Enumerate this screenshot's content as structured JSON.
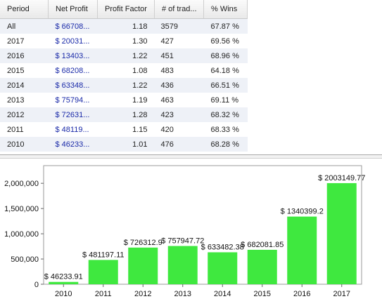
{
  "table": {
    "columns": [
      "Period",
      "Net Profit",
      "Profit Factor",
      "# of trad...",
      "% Wins"
    ],
    "rows": [
      {
        "period": "All",
        "net_profit": "$ 66708...",
        "profit_factor": "1.18",
        "trades": "3579",
        "wins": "67.87 %"
      },
      {
        "period": "2017",
        "net_profit": "$ 20031...",
        "profit_factor": "1.30",
        "trades": "427",
        "wins": "69.56 %"
      },
      {
        "period": "2016",
        "net_profit": "$ 13403...",
        "profit_factor": "1.22",
        "trades": "451",
        "wins": "68.96 %"
      },
      {
        "period": "2015",
        "net_profit": "$ 68208...",
        "profit_factor": "1.08",
        "trades": "483",
        "wins": "64.18 %"
      },
      {
        "period": "2014",
        "net_profit": "$ 63348...",
        "profit_factor": "1.22",
        "trades": "436",
        "wins": "66.51 %"
      },
      {
        "period": "2013",
        "net_profit": "$ 75794...",
        "profit_factor": "1.19",
        "trades": "463",
        "wins": "69.11 %"
      },
      {
        "period": "2012",
        "net_profit": "$ 72631...",
        "profit_factor": "1.28",
        "trades": "423",
        "wins": "68.32 %"
      },
      {
        "period": "2011",
        "net_profit": "$ 48119...",
        "profit_factor": "1.15",
        "trades": "420",
        "wins": "68.33 %"
      },
      {
        "period": "2010",
        "net_profit": "$ 46233...",
        "profit_factor": "1.01",
        "trades": "476",
        "wins": "68.28 %"
      }
    ]
  },
  "chart_data": {
    "type": "bar",
    "categories": [
      "2010",
      "2011",
      "2012",
      "2013",
      "2014",
      "2015",
      "2016",
      "2017"
    ],
    "values": [
      46233.91,
      481197.11,
      726312.9,
      757947.72,
      633482.38,
      682081.85,
      1340399.2,
      2003149.77
    ],
    "labels": [
      "$ 46233.91",
      "$ 481197.11",
      "$ 726312.9",
      "$ 757947.72",
      "$ 633482.38",
      "$ 682081.85",
      "$ 1340399.2",
      "$ 2003149.77"
    ],
    "yticks": [
      0,
      500000,
      1000000,
      1500000,
      2000000
    ],
    "ytick_labels": [
      "0",
      "500,000",
      "1,000,000",
      "1,500,000",
      "2,000,000"
    ],
    "ylim": [
      0,
      2350000
    ],
    "grid": false,
    "bar_color": "#3fe83f"
  }
}
